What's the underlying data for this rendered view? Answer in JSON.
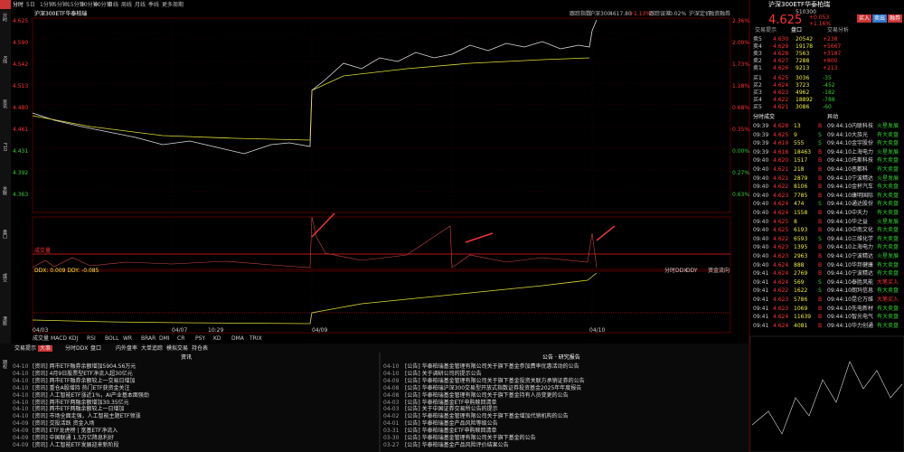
{
  "toolbar": {
    "periods": [
      "分时",
      "5日",
      "1分钟",
      "5分钟",
      "15分钟",
      "30分钟",
      "60分钟",
      "日线",
      "周线",
      "月线",
      "季线",
      "更多周期"
    ]
  },
  "sidebar": [
    "分时",
    "K线",
    "资讯",
    "F10",
    "关联",
    "盘口",
    "成交",
    "港股",
    "期权"
  ],
  "chart": {
    "title": "沪深300ETF华泰柏瑞",
    "info": [
      "跟踪指数",
      "沪深300",
      "4617.80",
      "+1.13%",
      "跟踪误差",
      "0.02%",
      "沪深定价",
      "融资融券"
    ],
    "left_labels": [
      "4.625",
      "4.590",
      "4.542",
      "4.513",
      "4.480",
      "4.461",
      "4.431",
      "4.392",
      "4.363"
    ],
    "right_labels": [
      "2.36%",
      "2.00%",
      "1.73%",
      "1.18%",
      "0.68%",
      "0.35%",
      "0.00%",
      "0.27%",
      "0.63%"
    ],
    "vol_label": "成交量",
    "ddx_label": "DDX: 0.009  DDY: -0.085",
    "ddx_tabs": [
      "分时DDX",
      "DDY",
      "资金流向"
    ],
    "dates": [
      "04/03",
      "04/07",
      "10:29",
      "04/09",
      "04/10"
    ],
    "indicators": [
      "成交量",
      "MACD",
      "KDJ",
      "RSI",
      "BOLL",
      "WR",
      "BRAR",
      "DMI",
      "CR",
      "PSY",
      "KD",
      "DMA",
      "TRIX"
    ]
  },
  "quote": {
    "name": "沪深300ETF华泰柏瑞",
    "code": "510300",
    "price": "4.625",
    "change": "+0.053",
    "pct": "+1.16%",
    "buttons": [
      "买入",
      "卖出",
      "融券"
    ],
    "tabs": [
      "交易提示",
      "盘口",
      "交易分析"
    ]
  },
  "order_book": {
    "rows": [
      [
        "卖5",
        "4.630",
        "20542",
        "+238"
      ],
      [
        "卖4",
        "4.629",
        "19178",
        "+5667"
      ],
      [
        "卖3",
        "4.628",
        "7563",
        "+3187"
      ],
      [
        "卖2",
        "4.627",
        "7288",
        "+800"
      ],
      [
        "卖1",
        "4.626",
        "9213",
        "+213"
      ],
      [
        "买1",
        "4.625",
        "3036",
        "-35"
      ],
      [
        "买2",
        "4.624",
        "3723",
        "-452"
      ],
      [
        "买3",
        "4.623",
        "4962",
        "-182"
      ],
      [
        "买4",
        "4.622",
        "18892",
        "-788"
      ],
      [
        "买5",
        "4.621",
        "3086",
        "-60"
      ]
    ]
  },
  "trades": {
    "title": "分时成交",
    "rows": [
      [
        "09:39",
        "4.628",
        "13",
        "B"
      ],
      [
        "09:39",
        "4.625",
        "9",
        "S"
      ],
      [
        "09:39",
        "4.619",
        "555",
        "S"
      ],
      [
        "09:39",
        "4.618",
        "18463",
        "B"
      ],
      [
        "09:40",
        "4.620",
        "1517",
        "B"
      ],
      [
        "09:40",
        "4.621",
        "218",
        "B"
      ],
      [
        "09:40",
        "4.621",
        "2879",
        "B"
      ],
      [
        "09:40",
        "4.622",
        "8106",
        "B"
      ],
      [
        "09:40",
        "4.623",
        "7785",
        "B"
      ],
      [
        "09:40",
        "4.624",
        "474",
        "S"
      ],
      [
        "09:40",
        "4.624",
        "1558",
        "B"
      ],
      [
        "09:40",
        "4.625",
        "8",
        "B"
      ],
      [
        "09:40",
        "4.625",
        "6193",
        "B"
      ],
      [
        "09:40",
        "4.622",
        "6593",
        "S"
      ],
      [
        "09:40",
        "4.623",
        "1395",
        "B"
      ],
      [
        "09:40",
        "4.623",
        "2963",
        "B"
      ],
      [
        "09:40",
        "4.624",
        "888",
        "B"
      ],
      [
        "09:41",
        "4.624",
        "2769",
        "B"
      ],
      [
        "09:41",
        "4.624",
        "569",
        "S"
      ],
      [
        "09:41",
        "4.622",
        "1622",
        "S"
      ],
      [
        "09:41",
        "4.623",
        "5786",
        "B"
      ],
      [
        "09:41",
        "4.623",
        "1069",
        "B"
      ],
      [
        "09:41",
        "4.624",
        "11639",
        "B"
      ],
      [
        "09:41",
        "4.624",
        "4081",
        "B"
      ]
    ]
  },
  "feed": {
    "title": "异动",
    "rows": [
      [
        "09:44:10",
        "内联科技",
        "火星发展"
      ],
      [
        "09:44:10",
        "大族光",
        "有大卖盘"
      ],
      [
        "09:44:10",
        "金宇股份",
        "有大卖盘"
      ],
      [
        "09:44:10",
        "上海电力",
        "火星发展"
      ],
      [
        "09:44:10",
        "托斯科技",
        "有大卖盘"
      ],
      [
        "09:44:10",
        "恶都科",
        "有大卖盘"
      ],
      [
        "09:44:10",
        "宁波精达",
        "火星发展"
      ],
      [
        "09:44:10",
        "金杯汽车",
        "有大卖盘"
      ],
      [
        "09:44:10",
        "康明国际",
        "有大卖盘"
      ],
      [
        "09:44:10",
        "通达股份",
        "有大卖盘"
      ],
      [
        "09:44:10",
        "中天力",
        "有大卖盘"
      ],
      [
        "09:44:10",
        "华之益",
        "火星发展"
      ],
      [
        "09:44:10",
        "中南文化",
        "有大卖盘"
      ],
      [
        "09:44:10",
        "三维化学",
        "有大卖盘"
      ],
      [
        "09:44:10",
        "上海电力",
        "有大卖盘"
      ],
      [
        "09:44:10",
        "宁波精达",
        "火星发展"
      ],
      [
        "09:44:10",
        "华邦健康",
        "有大卖盘"
      ],
      [
        "09:44:10",
        "宁波精达",
        "有大卖盘"
      ],
      [
        "09:44:10",
        "泰胜风能",
        "大笔买入"
      ],
      [
        "09:44:10",
        "朗玛信息",
        "有大卖盘"
      ],
      [
        "09:44:10",
        "昆仑万维",
        "大笔买入"
      ],
      [
        "09:44:10",
        "先电新材",
        "有大卖盘"
      ],
      [
        "09:44:10",
        "智光电气",
        "有大卖盘"
      ],
      [
        "09:44:10",
        "华力创通",
        "有大卖盘"
      ]
    ]
  },
  "bottom": {
    "tabs": [
      "交易提示",
      "大事",
      "分时DDX",
      "盘口",
      "内外盘率",
      "大单追踪",
      "模拟交易",
      "持仓表"
    ],
    "news_title": "资讯",
    "ann_title": "公告 · 研究报告",
    "news": [
      [
        "04-10",
        "[资讯] 两市ETF融券余额增加5904.56万元"
      ],
      [
        "04-10",
        "[资讯] 4月9日股票型ETF净流入超30亿元"
      ],
      [
        "04-10",
        "[资讯] 两市ETF融券余额较上一交易日增加"
      ],
      [
        "04-10",
        "[资讯] 重仓A股增持 热门ETF获资金关注"
      ],
      [
        "04-10",
        "[资讯] 人工智能ETF涨近1%，AI产业基本面强劲"
      ],
      [
        "04-10",
        "[资讯] 两市ETF两融余额增加30.35亿元"
      ],
      [
        "04-10",
        "[资讯] 两市ETF两融余额较上一日增加"
      ],
      [
        "04-10",
        "[资讯] 市场全面走强，人工智能主题ETF领涨"
      ],
      [
        "04-09",
        "[资讯] 交投活跃 资金入场"
      ],
      [
        "04-09",
        "[资讯] ETF龙虎榜 | 宽基ETF净流入"
      ],
      [
        "04-09",
        "[资讯] 中国联通 1.5万亿降息利好"
      ],
      [
        "04-09",
        "[资讯] 人工智能ETF发展迎来新阶段"
      ]
    ],
    "announcements": [
      [
        "04-10",
        "[公告] 华泰柏瑞基金管理有限公司关于旗下基金参加费率优惠活动的公告"
      ],
      [
        "04-10",
        "[公告] 关于调研公司的提示公告"
      ],
      [
        "04-09",
        "[公告] 华泰柏瑞基金管理有限公司关于旗下基金投资关联方承销证券的公告"
      ],
      [
        "04-08",
        "[公告] 华泰柏瑞沪深300交易型开放式指数证券投资基金2025年年度报告"
      ],
      [
        "04-08",
        "[公告] 华泰柏瑞基金管理有限公司关于旗下基金持有人员变更的公告"
      ],
      [
        "04-03",
        "[公告] 华泰柏瑞基金ETF申购赎回清单"
      ],
      [
        "04-03",
        "[公告] 关于中国证券交易所公告的提示"
      ],
      [
        "04-02",
        "[公告] 华泰柏瑞基金管理有限公司关于旗下基金增加代销机构的公告"
      ],
      [
        "04-01",
        "[公告] 华泰柏瑞基金产品风险等级公告"
      ],
      [
        "03-31",
        "[公告] 华泰柏瑞基金ETF申购赎回清单"
      ],
      [
        "03-30",
        "[公告] 华泰柏瑞基金管理有限公司关于旗下基金的公告"
      ],
      [
        "03-27",
        "[公告] 华泰柏瑞基金产品风险评价结果公告"
      ]
    ]
  }
}
